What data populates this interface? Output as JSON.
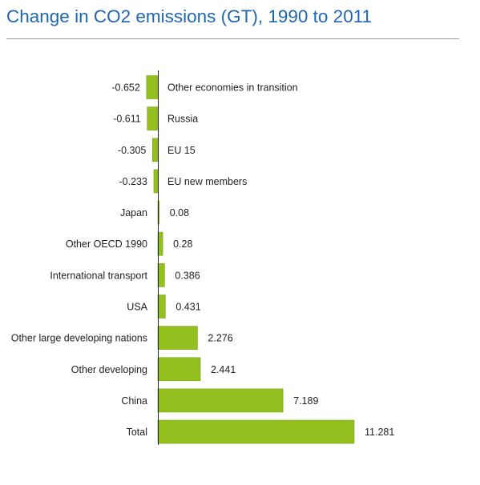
{
  "title": "Change in CO2 emissions (GT), 1990 to 2011",
  "colors": {
    "bar": "#93c01f",
    "bar_stroke": "#77a015",
    "title": "#1f66b0",
    "axis": "#222222"
  },
  "chart_data": {
    "type": "bar",
    "orientation": "horizontal",
    "title": "Change in CO2 emissions (GT), 1990 to 2011",
    "xlabel": "",
    "ylabel": "",
    "categories": [
      "Other economies in transition",
      "Russia",
      "EU 15",
      "EU new members",
      "Japan",
      "Other OECD 1990",
      "International transport",
      "USA",
      "Other large developing nations",
      "Other developing",
      "China",
      "Total"
    ],
    "values": [
      -0.652,
      -0.611,
      -0.305,
      -0.233,
      0.08,
      0.28,
      0.386,
      0.431,
      2.276,
      2.441,
      7.189,
      11.281
    ],
    "value_labels": [
      "-0.652",
      "-0.611",
      "-0.305",
      "-0.233",
      "0.08",
      "0.28",
      "0.386",
      "0.431",
      "2.276",
      "2.441",
      "7.189",
      "11.281"
    ],
    "grid": false,
    "legend": "none"
  }
}
